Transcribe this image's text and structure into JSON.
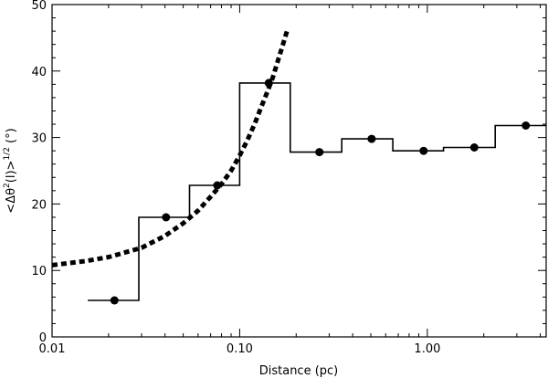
{
  "chart_data": {
    "type": "line",
    "xscale": "log",
    "xlim": [
      0.01,
      4.3
    ],
    "ylim": [
      0,
      50
    ],
    "xlabel": "Distance (pc)",
    "ylabel_parts": [
      "<Δθ",
      "2",
      "(l)>",
      "1/2",
      " (°)"
    ],
    "x_ticks": [
      {
        "value": 0.01,
        "label": "0.01"
      },
      {
        "value": 0.1,
        "label": "0.10"
      },
      {
        "value": 1.0,
        "label": "1.00"
      }
    ],
    "y_ticks": [
      {
        "value": 0,
        "label": "0"
      },
      {
        "value": 10,
        "label": "10"
      },
      {
        "value": 20,
        "label": "20"
      },
      {
        "value": 30,
        "label": "30"
      },
      {
        "value": 40,
        "label": "40"
      },
      {
        "value": 50,
        "label": "50"
      }
    ],
    "step_series": {
      "edges": [
        0.0155,
        0.029,
        0.054,
        0.1,
        0.186,
        0.35,
        0.655,
        1.22,
        2.3,
        4.3
      ],
      "values": [
        5.5,
        18.0,
        22.8,
        38.2,
        27.8,
        29.8,
        28.0,
        28.5,
        31.8
      ]
    },
    "points": [
      {
        "x": 0.0215,
        "y": 5.5
      },
      {
        "x": 0.0405,
        "y": 18.0
      },
      {
        "x": 0.076,
        "y": 22.8
      },
      {
        "x": 0.143,
        "y": 38.2
      },
      {
        "x": 0.266,
        "y": 27.8
      },
      {
        "x": 0.505,
        "y": 29.8
      },
      {
        "x": 0.955,
        "y": 28.0
      },
      {
        "x": 1.78,
        "y": 28.5
      },
      {
        "x": 3.35,
        "y": 31.8
      }
    ],
    "fit_curve": {
      "x": [
        0.01,
        0.015,
        0.02,
        0.03,
        0.04,
        0.05,
        0.06,
        0.07,
        0.08,
        0.09,
        0.1,
        0.11,
        0.12,
        0.13,
        0.14,
        0.15,
        0.16,
        0.17,
        0.18
      ],
      "y": [
        10.8,
        11.4,
        12.0,
        13.4,
        15.2,
        17.1,
        19.0,
        21.1,
        23.0,
        25.0,
        27.3,
        29.6,
        32.0,
        34.5,
        36.8,
        39.0,
        41.6,
        44.0,
        46.3
      ]
    }
  }
}
